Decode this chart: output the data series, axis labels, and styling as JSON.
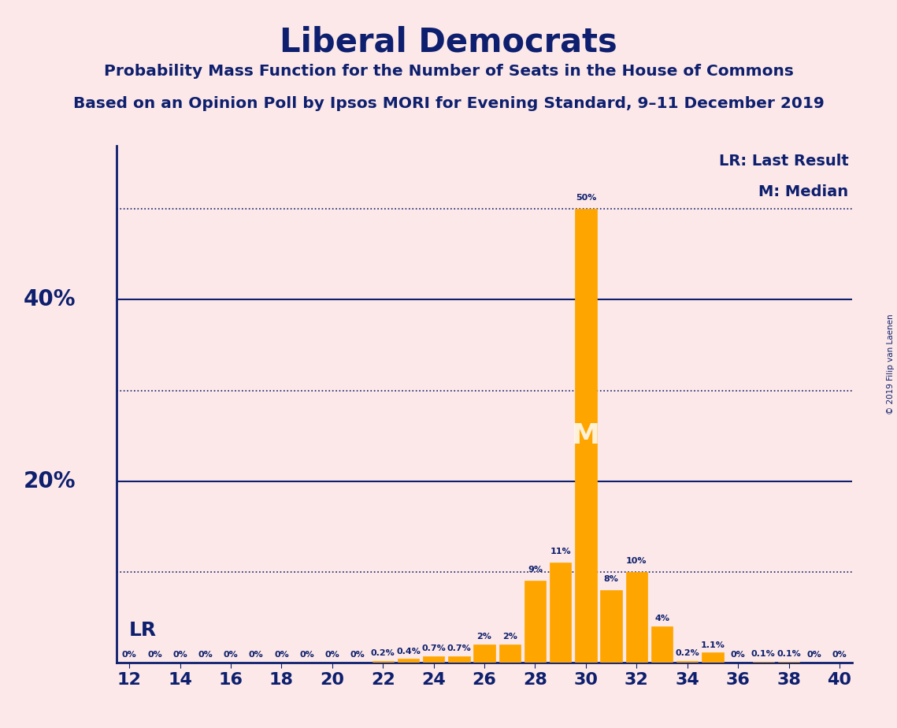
{
  "title": "Liberal Democrats",
  "subtitle1": "Probability Mass Function for the Number of Seats in the House of Commons",
  "subtitle2": "Based on an Opinion Poll by Ipsos MORI for Evening Standard, 9–11 December 2019",
  "copyright": "© 2019 Filip van Laenen",
  "background_color": "#fce8e8",
  "bar_color": "#FFA500",
  "title_color": "#0d1f6e",
  "seats": [
    12,
    13,
    14,
    15,
    16,
    17,
    18,
    19,
    20,
    21,
    22,
    23,
    24,
    25,
    26,
    27,
    28,
    29,
    30,
    31,
    32,
    33,
    34,
    35,
    36,
    37,
    38,
    39,
    40
  ],
  "probabilities": [
    0.0,
    0.0,
    0.0,
    0.0,
    0.0,
    0.0,
    0.0,
    0.0,
    0.0,
    0.0,
    0.2,
    0.4,
    0.7,
    0.7,
    2.0,
    2.0,
    9.0,
    11.0,
    50.0,
    8.0,
    10.0,
    4.0,
    0.2,
    1.1,
    0.0,
    0.1,
    0.1,
    0.0,
    0.0
  ],
  "bar_labels": [
    "0%",
    "0%",
    "0%",
    "0%",
    "0%",
    "0%",
    "0%",
    "0%",
    "0%",
    "0%",
    "0.2%",
    "0.4%",
    "0.7%",
    "0.7%",
    "2%",
    "2%",
    "9%",
    "11%",
    "50%",
    "8%",
    "10%",
    "4%",
    "0.2%",
    "1.1%",
    "0%",
    "0.1%",
    "0.1%",
    "0%",
    "0%"
  ],
  "ylim": [
    0,
    57
  ],
  "solid_grid_lines": [
    20,
    40
  ],
  "dotted_grid_lines": [
    10,
    30,
    50
  ],
  "xmin": 11.5,
  "xmax": 40.5,
  "median_seat": 30,
  "lr_x_seat": 12,
  "legend_lr": "LR: Last Result",
  "legend_m": "M: Median"
}
